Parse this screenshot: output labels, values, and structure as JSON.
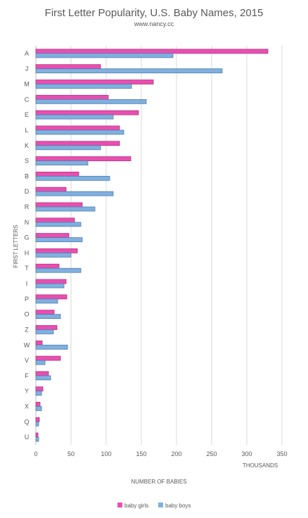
{
  "chart_data": {
    "type": "bar",
    "orientation": "horizontal",
    "title": "First Letter Popularity, U.S. Baby Names, 2015",
    "subtitle": "www.nancy.cc",
    "xlabel": "NUMBER OF BABIES",
    "xunit": "THOUSANDS",
    "ylabel": "FIRST LETTERS",
    "xlim": [
      0,
      350
    ],
    "xticks": [
      "0",
      "50",
      "100",
      "150",
      "200",
      "250",
      "300",
      "350"
    ],
    "grid": true,
    "legend_position": "bottom",
    "categories": [
      "A",
      "J",
      "M",
      "C",
      "E",
      "L",
      "K",
      "S",
      "B",
      "D",
      "R",
      "N",
      "G",
      "H",
      "T",
      "I",
      "P",
      "O",
      "Z",
      "W",
      "V",
      "F",
      "Y",
      "X",
      "Q",
      "U"
    ],
    "series": [
      {
        "name": "baby girls",
        "color": "#e84fb0",
        "values": [
          330,
          92,
          167,
          103,
          146,
          119,
          119,
          135,
          61,
          43,
          66,
          55,
          47,
          59,
          33,
          43,
          44,
          26,
          30,
          9,
          35,
          18,
          10,
          6,
          5,
          3
        ]
      },
      {
        "name": "baby boys",
        "color": "#7fb0de",
        "values": [
          195,
          265,
          136,
          157,
          110,
          125,
          92,
          74,
          105,
          110,
          84,
          64,
          66,
          50,
          64,
          40,
          31,
          35,
          25,
          45,
          13,
          21,
          8,
          8,
          4,
          4
        ]
      }
    ]
  }
}
